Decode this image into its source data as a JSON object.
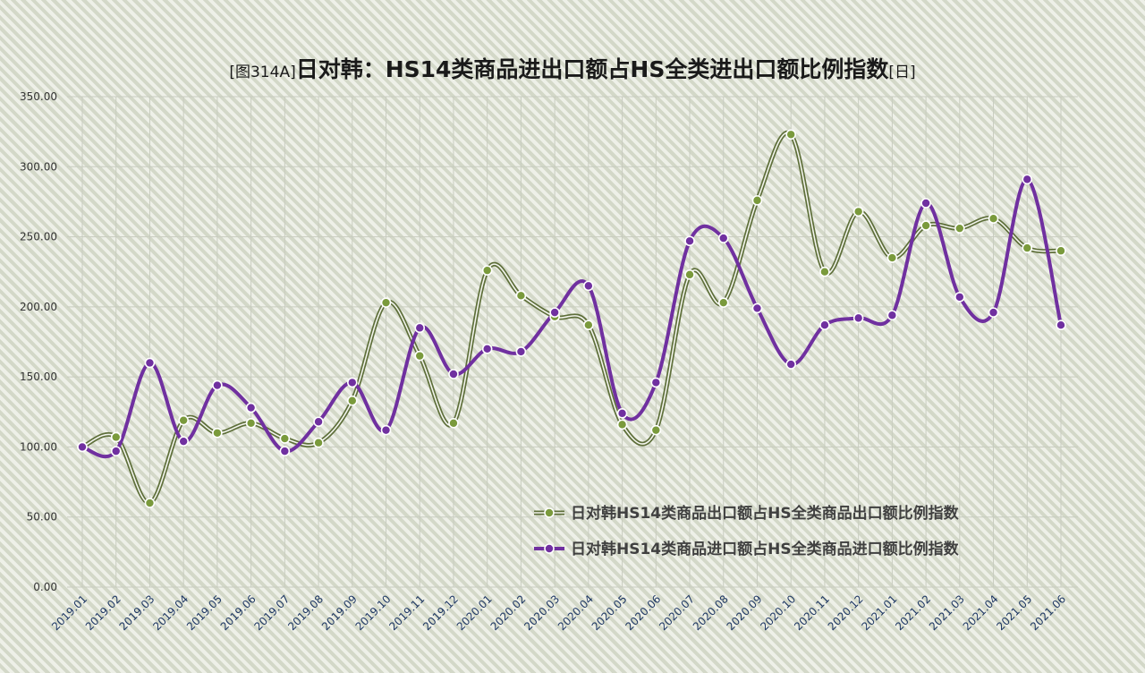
{
  "chart_title": {
    "prefix": "[图314A]",
    "main": "日对韩：HS14类商品进出口额占HS全类进出口额比例指数",
    "suffix": "[日]"
  },
  "chart_data": {
    "type": "line",
    "title": "[图314A]日对韩：HS14类商品进出口额占HS全类进出口额比例指数[日]",
    "xlabel": "",
    "ylabel": "",
    "ylim": [
      0,
      350
    ],
    "y_ticks": [
      "0.00",
      "50.00",
      "100.00",
      "150.00",
      "200.00",
      "250.00",
      "300.00",
      "350.00"
    ],
    "grid": true,
    "legend_position": "bottom-right",
    "categories": [
      "2019.01",
      "2019.02",
      "2019.03",
      "2019.04",
      "2019.05",
      "2019.06",
      "2019.07",
      "2019.08",
      "2019.09",
      "2019.10",
      "2019.11",
      "2019.12",
      "2020.01",
      "2020.02",
      "2020.03",
      "2020.04",
      "2020.05",
      "2020.06",
      "2020.07",
      "2020.08",
      "2020.09",
      "2020.10",
      "2020.11",
      "2020.12",
      "2021.01",
      "2021.02",
      "2021.03",
      "2021.04",
      "2021.05",
      "2021.06"
    ],
    "series": [
      {
        "name": "日对韩HS14类商品出口额占HS全类商品出口额比例指数",
        "color": "#5e6f3a",
        "marker_color": "#7a9a3c",
        "values": [
          100,
          107,
          60,
          119,
          110,
          117,
          106,
          103,
          133,
          203,
          165,
          117,
          226,
          208,
          193,
          187,
          116,
          112,
          223,
          203,
          276,
          323,
          225,
          268,
          235,
          258,
          256,
          263,
          242,
          240
        ]
      },
      {
        "name": "日对韩HS14类商品进口额占HS全类商品进口额比例指数",
        "color": "#7030a0",
        "marker_color": "#7030a0",
        "values": [
          100,
          97,
          160,
          104,
          144,
          128,
          97,
          118,
          146,
          112,
          185,
          152,
          170,
          168,
          196,
          215,
          124,
          146,
          247,
          249,
          199,
          159,
          187,
          192,
          194,
          274,
          207,
          196,
          291,
          187
        ]
      }
    ]
  }
}
